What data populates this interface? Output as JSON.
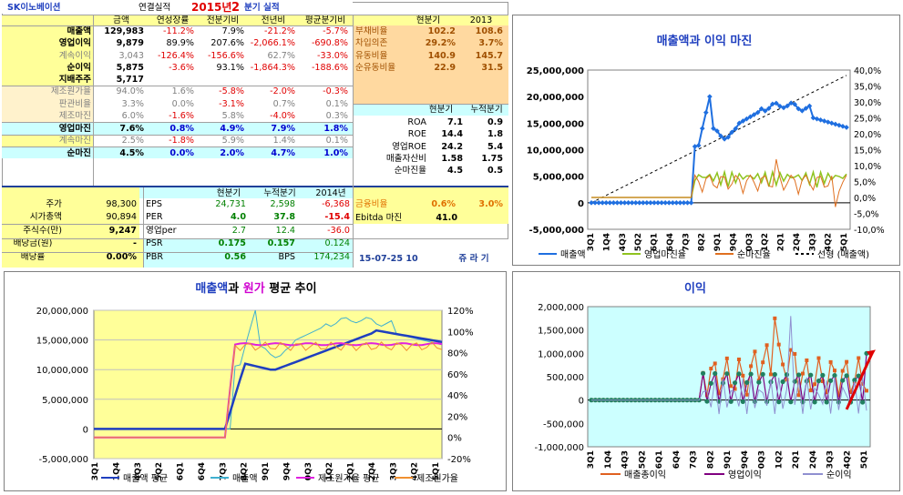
{
  "title": {
    "company": "SK이노베이션",
    "sub": "연결실적",
    "year": "2015년",
    "q": "2",
    "suffix": "분기 실적"
  },
  "hdr1": [
    "금액",
    "연성장률",
    "전분기비",
    "전년비",
    "평균분기비"
  ],
  "main_rows": [
    [
      "매출액",
      "129,983",
      "-11.2%",
      "7.9%",
      "-21.2%",
      "-5.7%"
    ],
    [
      "영업이익",
      "9,879",
      "89.9%",
      "207.6%",
      "-2,066.1%",
      "-690.8%"
    ],
    [
      "계속이익",
      "3,043",
      "-126.4%",
      "-156.6%",
      "62.7%",
      "-33.0%"
    ],
    [
      "순이익",
      "5,875",
      "-3.6%",
      "93.1%",
      "-1,864.3%",
      "-188.6%"
    ],
    [
      "지배주주",
      "5,717",
      "",
      "",
      "",
      ""
    ],
    [
      "제조원가율",
      "94.0%",
      "1.6%",
      "-5.8%",
      "-2.0%",
      "-0.3%"
    ],
    [
      "판관비율",
      "3.3%",
      "0.0%",
      "-3.1%",
      "0.7%",
      "0.1%"
    ],
    [
      "제조마진",
      "6.0%",
      "-1.6%",
      "5.8%",
      "-4.0%",
      "0.3%"
    ],
    [
      "영업마진",
      "7.6%",
      "0.8%",
      "4.9%",
      "7.9%",
      "1.8%"
    ],
    [
      "계속마진",
      "2.5%",
      "-1.8%",
      "5.9%",
      "1.4%",
      "0.1%"
    ],
    [
      "순마진",
      "4.5%",
      "0.0%",
      "2.0%",
      "4.7%",
      "1.0%"
    ]
  ],
  "ratio_hdr": [
    "현분기",
    "2013"
  ],
  "ratio_rows": [
    [
      "부채비율",
      "102.2",
      "108.6"
    ],
    [
      "차입의존",
      "29.2%",
      "3.7%"
    ],
    [
      "유동비율",
      "140.9",
      "145.7"
    ],
    [
      "순유동비율",
      "22.9",
      "31.5"
    ]
  ],
  "roa_hdr": [
    "현분기",
    "누적분기"
  ],
  "roa_rows": [
    [
      "ROA",
      "7.1",
      "0.9"
    ],
    [
      "ROE",
      "14.4",
      "1.8"
    ],
    [
      "영업ROE",
      "24.2",
      "5.4"
    ],
    [
      "매출자산비",
      "1.58",
      "1.75"
    ],
    [
      "순마진율",
      "4.5",
      "0.5"
    ]
  ],
  "val_hdr": [
    "현분기",
    "누적분기",
    "2014년"
  ],
  "val_rows": [
    [
      "주가",
      "98,300",
      "EPS",
      "24,731",
      "2,598",
      "-6,368"
    ],
    [
      "시가총액",
      "90,894",
      "PER",
      "4.0",
      "37.8",
      "-15.4"
    ],
    [
      "주식수(만)",
      "9,247",
      "영업per",
      "2.7",
      "12.4",
      "-36.0"
    ],
    [
      "배당금(원)",
      "-",
      "PSR",
      "0.175",
      "0.157",
      "0.124"
    ],
    [
      "배당률",
      "0.00%",
      "PBR",
      "0.56",
      "BPS",
      "174,234"
    ]
  ],
  "fin": {
    "label1": "금융비율",
    "v1": "0.6%",
    "v2": "3.0%",
    "label2": "Ebitda 마진",
    "v3": "41.0"
  },
  "footer": {
    "date": "15-07-25 10",
    "btn": "쥬 라 기"
  },
  "quarters": [
    "3Q1",
    "1Q4",
    "4Q3",
    "5Q2",
    "6Q1",
    "6Q4",
    "7Q3",
    "8Q2",
    "9Q1",
    "9Q4",
    "0Q3",
    "1Q2",
    "2Q1",
    "2Q4",
    "3Q3",
    "4Q2",
    "5Q1"
  ],
  "chart1": {
    "title": "매출액과 이익 마진",
    "yl": [
      "25,000,000",
      "20,000,000",
      "15,000,000",
      "10,000,000",
      "5,000,000",
      "0",
      "-5,000,000"
    ],
    "yr": [
      "40,0%",
      "35,0%",
      "30,0%",
      "25,0%",
      "20,0%",
      "15,0%",
      "10,0%",
      "5,0%",
      "0,0%",
      "-5,0%",
      "-10,0%"
    ],
    "legend": [
      "매출액",
      "영업마진율",
      "순마진율",
      "선형 (매출액)"
    ],
    "colors": {
      "sales": "#1f6fe0",
      "op": "#8fc31f",
      "net": "#e07020",
      "trend": "#000000"
    }
  },
  "chart2": {
    "title_a": "매출액",
    "title_b": "과 ",
    "title_c": "원가",
    "title_d": " 평균 추이",
    "yl": [
      "20,000,000",
      "15,000,000",
      "10,000,000",
      "5,000,000",
      "0",
      "-5,000,000"
    ],
    "yr": [
      "120%",
      "100%",
      "80%",
      "60%",
      "40%",
      "20%",
      "0%",
      "-20%"
    ],
    "legend": [
      "매출액 평균",
      "매출액",
      "제조원가율 평균",
      "제조원가율"
    ]
  },
  "chart3": {
    "title": "이익",
    "yl": [
      "2,000,000",
      "1,500,000",
      "1,000,000",
      "500,000",
      "0",
      "-500,000",
      "-1,000,000"
    ],
    "legend": [
      "매출총이익",
      "영업이익",
      "순이익"
    ]
  }
}
